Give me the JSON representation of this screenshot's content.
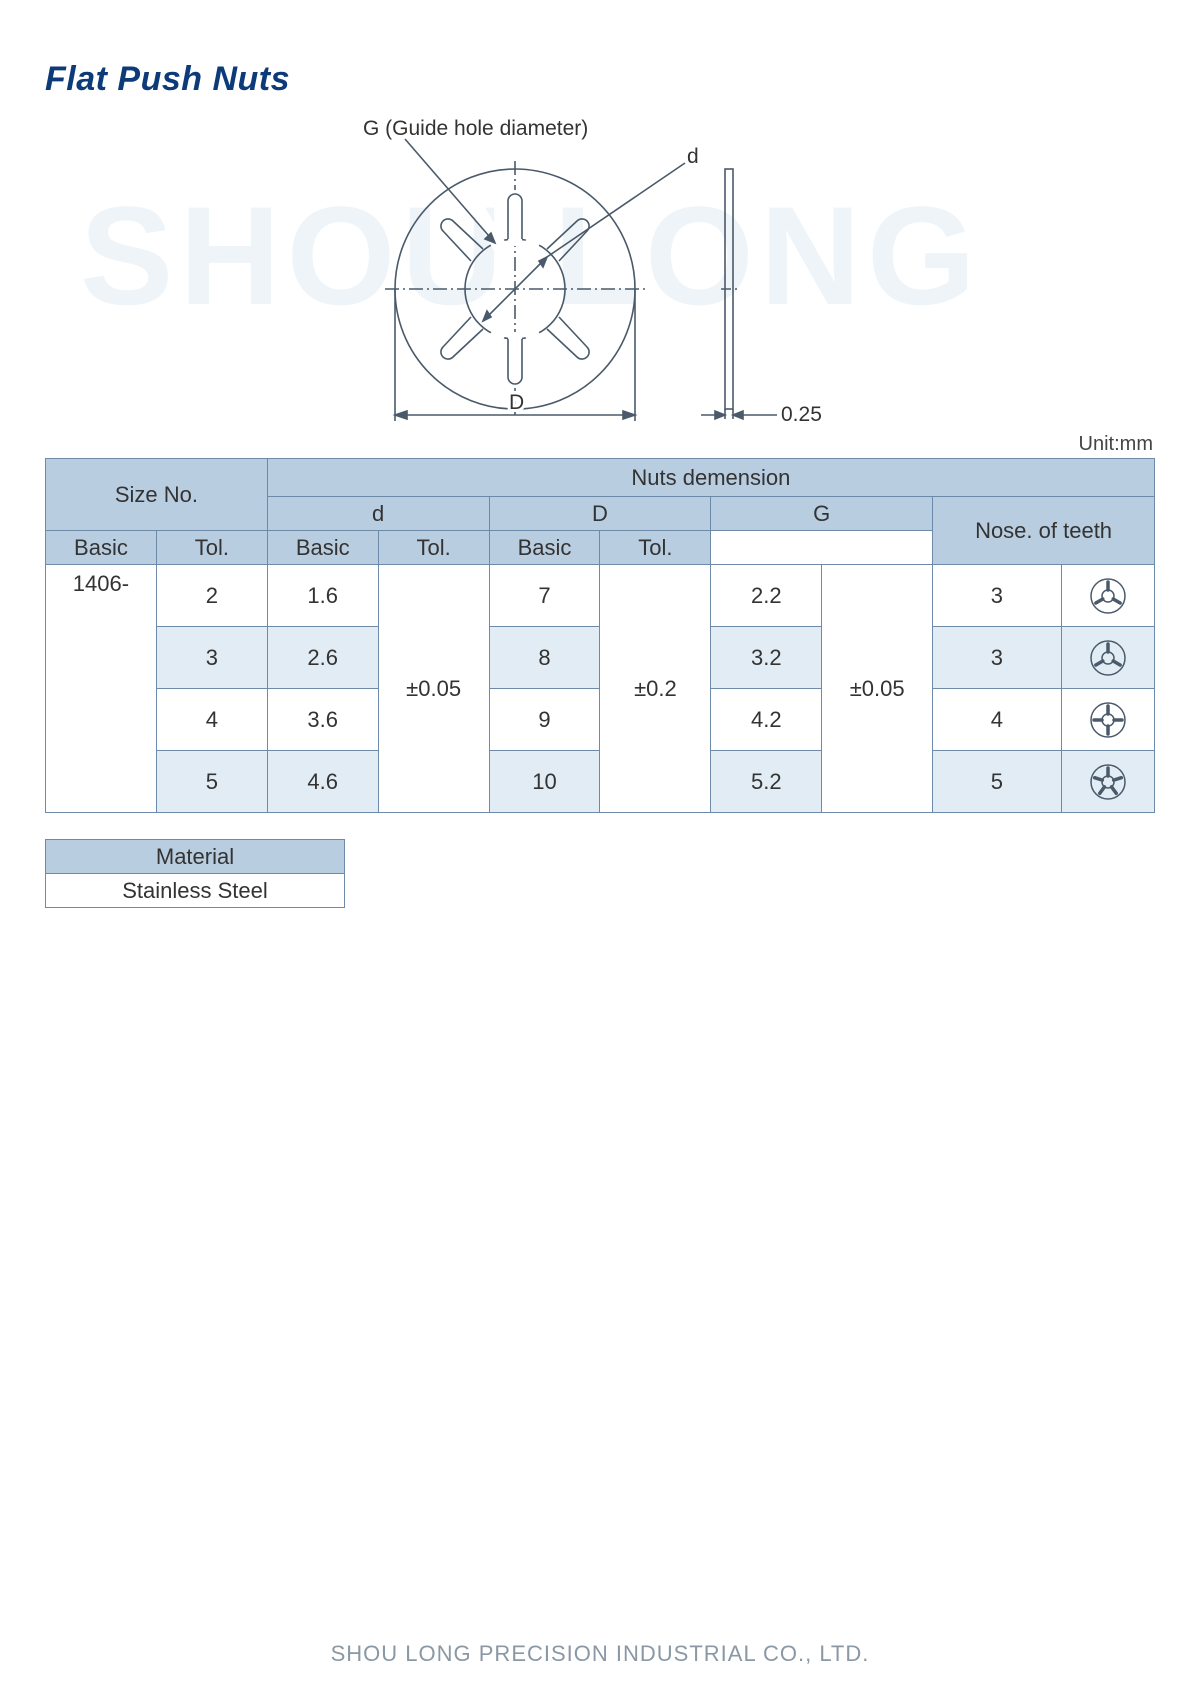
{
  "title": "Flat Push Nuts",
  "watermark": "SHOU LONG",
  "diagram": {
    "label_G": "G (Guide hole diameter)",
    "label_d": "d",
    "label_D": "D",
    "thickness": "0.25",
    "stroke": "#4a5a6a",
    "thin_stroke": "#6d8aa8"
  },
  "unit_label": "Unit:mm",
  "table": {
    "headers": {
      "size_no": "Size No.",
      "nuts_dimension": "Nuts demension",
      "d": "d",
      "D": "D",
      "G": "G",
      "nose_teeth": "Nose. of teeth",
      "basic": "Basic",
      "tol": "Tol."
    },
    "size_prefix": "1406-",
    "tol_d": "±0.05",
    "tol_D": "±0.2",
    "tol_G": "±0.05",
    "rows": [
      {
        "size": "2",
        "d": "1.6",
        "D": "7",
        "G": "2.2",
        "teeth": "3",
        "teeth_n": 3
      },
      {
        "size": "3",
        "d": "2.6",
        "D": "8",
        "G": "3.2",
        "teeth": "3",
        "teeth_n": 3
      },
      {
        "size": "4",
        "d": "3.6",
        "D": "9",
        "G": "4.2",
        "teeth": "4",
        "teeth_n": 4
      },
      {
        "size": "5",
        "d": "4.6",
        "D": "10",
        "G": "5.2",
        "teeth": "5",
        "teeth_n": 5
      }
    ],
    "colors": {
      "header_bg": "#b9cde1",
      "row_alt_bg": "#e2ecf4",
      "border": "#6d8aa8",
      "text": "#333333"
    }
  },
  "material": {
    "header": "Material",
    "value": "Stainless Steel"
  },
  "footer": "SHOU LONG PRECISION INDUSTRIAL CO., LTD."
}
